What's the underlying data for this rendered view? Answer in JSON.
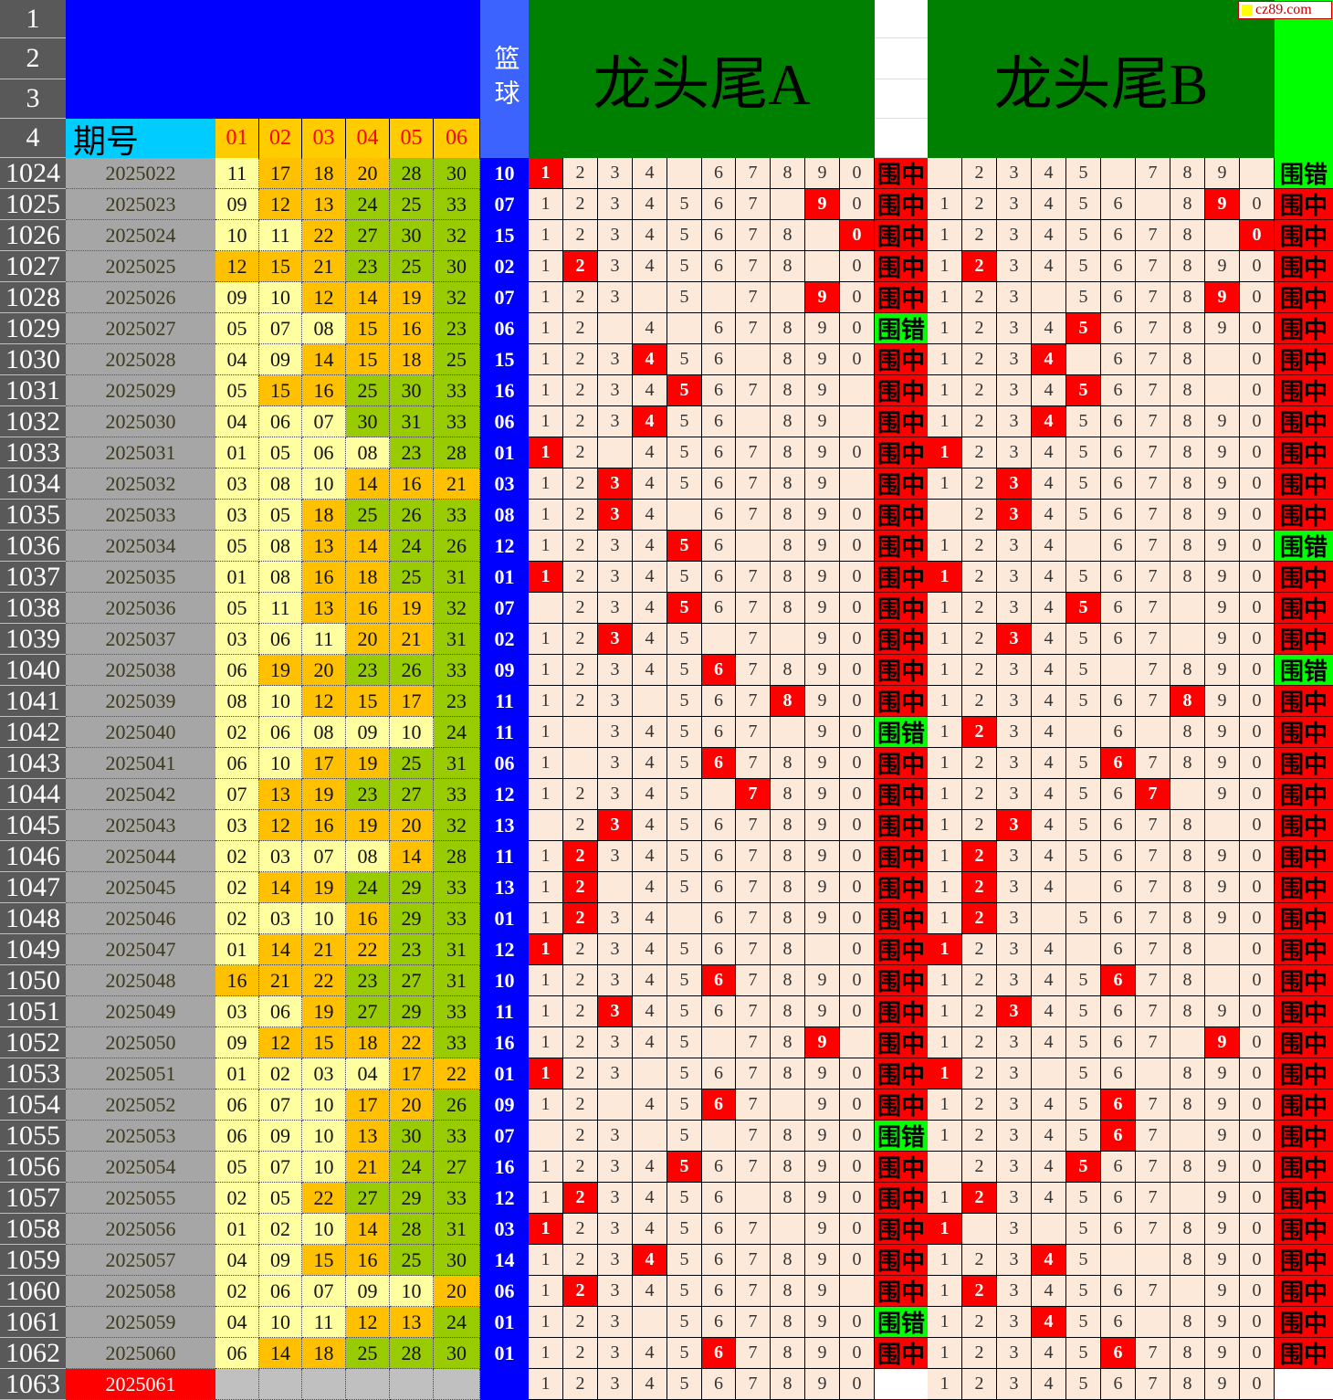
{
  "header": {
    "row_numbers": [
      "1",
      "2",
      "3",
      "4"
    ],
    "issue_label": "期号",
    "red_labels": [
      "01",
      "02",
      "03",
      "04",
      "05",
      "06"
    ],
    "blue_label": "篮球",
    "title_a": "龙头尾A",
    "title_b": "龙头尾B",
    "logo_text": "cz89.com"
  },
  "colors": {
    "red_low": "#ffffa0",
    "red_mid": "#ffc000",
    "red_high": "#99cc00",
    "hit": "#ff0000",
    "result_hit": "#ff0000",
    "result_miss": "#00ff00",
    "panel_green": "#008000",
    "header_blue": "#0000ff",
    "grid_bg": "#fde9d9"
  },
  "rows": [
    {
      "row": "1024",
      "issue": "2025022",
      "reds": [
        "11",
        "17",
        "18",
        "20",
        "28",
        "30"
      ],
      "blue": "10",
      "a": {
        "cells": "1234 67890",
        "hit": "1",
        "result": "围中"
      },
      "b": {
        "cells": " 2345 789 ",
        "hit": "",
        "result": "围错"
      }
    },
    {
      "row": "1025",
      "issue": "2025023",
      "reds": [
        "09",
        "12",
        "13",
        "24",
        "25",
        "33"
      ],
      "blue": "07",
      "a": {
        "cells": "1234567 90",
        "hit": "9",
        "result": "围中"
      },
      "b": {
        "cells": "123456 890",
        "hit": "9",
        "result": "围中"
      }
    },
    {
      "row": "1026",
      "issue": "2025024",
      "reds": [
        "10",
        "11",
        "22",
        "27",
        "30",
        "32"
      ],
      "blue": "15",
      "a": {
        "cells": "12345678 0",
        "hit": "0",
        "result": "围中"
      },
      "b": {
        "cells": "12345678 0",
        "hit": "0",
        "result": "围中"
      }
    },
    {
      "row": "1027",
      "issue": "2025025",
      "reds": [
        "12",
        "15",
        "21",
        "23",
        "25",
        "30"
      ],
      "blue": "02",
      "a": {
        "cells": "12345678 0",
        "hit": "2",
        "result": "围中"
      },
      "b": {
        "cells": "1234567890",
        "hit": "2",
        "result": "围中"
      }
    },
    {
      "row": "1028",
      "issue": "2025026",
      "reds": [
        "09",
        "10",
        "12",
        "14",
        "19",
        "32"
      ],
      "blue": "07",
      "a": {
        "cells": "123 5 7 90",
        "hit": "9",
        "result": "围中"
      },
      "b": {
        "cells": "123 567890",
        "hit": "9",
        "result": "围中"
      }
    },
    {
      "row": "1029",
      "issue": "2025027",
      "reds": [
        "05",
        "07",
        "08",
        "15",
        "16",
        "23"
      ],
      "blue": "06",
      "a": {
        "cells": "12 4 67890",
        "hit": "",
        "result": "围错"
      },
      "b": {
        "cells": "1234567890",
        "hit": "5",
        "result": "围中"
      }
    },
    {
      "row": "1030",
      "issue": "2025028",
      "reds": [
        "04",
        "09",
        "14",
        "15",
        "18",
        "25"
      ],
      "blue": "15",
      "a": {
        "cells": "123456 890",
        "hit": "4",
        "result": "围中"
      },
      "b": {
        "cells": "1234 678 0",
        "hit": "4",
        "result": "围中"
      }
    },
    {
      "row": "1031",
      "issue": "2025029",
      "reds": [
        "05",
        "15",
        "16",
        "25",
        "30",
        "33"
      ],
      "blue": "16",
      "a": {
        "cells": "123456789 ",
        "hit": "5",
        "result": "围中"
      },
      "b": {
        "cells": "12345678 0",
        "hit": "5",
        "result": "围中"
      }
    },
    {
      "row": "1032",
      "issue": "2025030",
      "reds": [
        "04",
        "06",
        "07",
        "30",
        "31",
        "33"
      ],
      "blue": "06",
      "a": {
        "cells": "123456 89 ",
        "hit": "4",
        "result": "围中"
      },
      "b": {
        "cells": "1234567890",
        "hit": "4",
        "result": "围中"
      }
    },
    {
      "row": "1033",
      "issue": "2025031",
      "reds": [
        "01",
        "05",
        "06",
        "08",
        "23",
        "28"
      ],
      "blue": "01",
      "a": {
        "cells": "12 4567890",
        "hit": "1",
        "result": "围中"
      },
      "b": {
        "cells": "1234567890",
        "hit": "1",
        "result": "围中"
      }
    },
    {
      "row": "1034",
      "issue": "2025032",
      "reds": [
        "03",
        "08",
        "10",
        "14",
        "16",
        "21"
      ],
      "blue": "03",
      "a": {
        "cells": "123456789 ",
        "hit": "3",
        "result": "围中"
      },
      "b": {
        "cells": "1234567890",
        "hit": "3",
        "result": "围中"
      }
    },
    {
      "row": "1035",
      "issue": "2025033",
      "reds": [
        "03",
        "05",
        "18",
        "25",
        "26",
        "33"
      ],
      "blue": "08",
      "a": {
        "cells": "1234 67890",
        "hit": "3",
        "result": "围中"
      },
      "b": {
        "cells": " 234567890",
        "hit": "3",
        "result": "围中"
      }
    },
    {
      "row": "1036",
      "issue": "2025034",
      "reds": [
        "05",
        "08",
        "13",
        "14",
        "24",
        "26"
      ],
      "blue": "12",
      "a": {
        "cells": "123456 890",
        "hit": "5",
        "result": "围中"
      },
      "b": {
        "cells": "1234 67890",
        "hit": "",
        "result": "围错"
      }
    },
    {
      "row": "1037",
      "issue": "2025035",
      "reds": [
        "01",
        "08",
        "16",
        "18",
        "25",
        "31"
      ],
      "blue": "01",
      "a": {
        "cells": "1234567890",
        "hit": "1",
        "result": "围中"
      },
      "b": {
        "cells": "1234567890",
        "hit": "1",
        "result": "围中"
      }
    },
    {
      "row": "1038",
      "issue": "2025036",
      "reds": [
        "05",
        "11",
        "13",
        "16",
        "19",
        "32"
      ],
      "blue": "07",
      "a": {
        "cells": " 234567890",
        "hit": "5",
        "result": "围中"
      },
      "b": {
        "cells": "1234567 90",
        "hit": "5",
        "result": "围中"
      }
    },
    {
      "row": "1039",
      "issue": "2025037",
      "reds": [
        "03",
        "06",
        "11",
        "20",
        "21",
        "31"
      ],
      "blue": "02",
      "a": {
        "cells": "12345 7 90",
        "hit": "3",
        "result": "围中"
      },
      "b": {
        "cells": "1234567 90",
        "hit": "3",
        "result": "围中"
      }
    },
    {
      "row": "1040",
      "issue": "2025038",
      "reds": [
        "06",
        "19",
        "20",
        "23",
        "26",
        "33"
      ],
      "blue": "09",
      "a": {
        "cells": "1234567890",
        "hit": "6",
        "result": "围中"
      },
      "b": {
        "cells": "12345 7890",
        "hit": "",
        "result": "围错"
      }
    },
    {
      "row": "1041",
      "issue": "2025039",
      "reds": [
        "08",
        "10",
        "12",
        "15",
        "17",
        "23"
      ],
      "blue": "11",
      "a": {
        "cells": "123 567890",
        "hit": "8",
        "result": "围中"
      },
      "b": {
        "cells": "1234567890",
        "hit": "8",
        "result": "围中"
      }
    },
    {
      "row": "1042",
      "issue": "2025040",
      "reds": [
        "02",
        "06",
        "08",
        "09",
        "10",
        "24"
      ],
      "blue": "11",
      "a": {
        "cells": "1 34567 90",
        "hit": "",
        "result": "围错"
      },
      "b": {
        "cells": "1234 6 890",
        "hit": "2",
        "result": "围中"
      }
    },
    {
      "row": "1043",
      "issue": "2025041",
      "reds": [
        "06",
        "10",
        "17",
        "19",
        "25",
        "31"
      ],
      "blue": "06",
      "a": {
        "cells": "1 34567890",
        "hit": "6",
        "result": "围中"
      },
      "b": {
        "cells": "1234567890",
        "hit": "6",
        "result": "围中"
      }
    },
    {
      "row": "1044",
      "issue": "2025042",
      "reds": [
        "07",
        "13",
        "19",
        "23",
        "27",
        "33"
      ],
      "blue": "12",
      "a": {
        "cells": "12345 7890",
        "hit": "7",
        "result": "围中"
      },
      "b": {
        "cells": "1234567 90",
        "hit": "7",
        "result": "围中"
      }
    },
    {
      "row": "1045",
      "issue": "2025043",
      "reds": [
        "03",
        "12",
        "16",
        "19",
        "20",
        "32"
      ],
      "blue": "13",
      "a": {
        "cells": " 234567890",
        "hit": "3",
        "result": "围中"
      },
      "b": {
        "cells": "12345678 0",
        "hit": "3",
        "result": "围中"
      }
    },
    {
      "row": "1046",
      "issue": "2025044",
      "reds": [
        "02",
        "03",
        "07",
        "08",
        "14",
        "28"
      ],
      "blue": "11",
      "a": {
        "cells": "1234567890",
        "hit": "2",
        "result": "围中"
      },
      "b": {
        "cells": "1234567890",
        "hit": "2",
        "result": "围中"
      }
    },
    {
      "row": "1047",
      "issue": "2025045",
      "reds": [
        "02",
        "14",
        "19",
        "24",
        "29",
        "33"
      ],
      "blue": "13",
      "a": {
        "cells": "12 4567890",
        "hit": "2",
        "result": "围中"
      },
      "b": {
        "cells": "1234 67890",
        "hit": "2",
        "result": "围中"
      }
    },
    {
      "row": "1048",
      "issue": "2025046",
      "reds": [
        "02",
        "03",
        "10",
        "16",
        "29",
        "33"
      ],
      "blue": "01",
      "a": {
        "cells": "1234 67890",
        "hit": "2",
        "result": "围中"
      },
      "b": {
        "cells": "123 567890",
        "hit": "2",
        "result": "围中"
      }
    },
    {
      "row": "1049",
      "issue": "2025047",
      "reds": [
        "01",
        "14",
        "21",
        "22",
        "23",
        "31"
      ],
      "blue": "12",
      "a": {
        "cells": "12345678 0",
        "hit": "1",
        "result": "围中"
      },
      "b": {
        "cells": "1234 678 0",
        "hit": "1",
        "result": "围中"
      }
    },
    {
      "row": "1050",
      "issue": "2025048",
      "reds": [
        "16",
        "21",
        "22",
        "23",
        "27",
        "31"
      ],
      "blue": "10",
      "a": {
        "cells": "1234567890",
        "hit": "6",
        "result": "围中"
      },
      "b": {
        "cells": "12345678 0",
        "hit": "6",
        "result": "围中"
      }
    },
    {
      "row": "1051",
      "issue": "2025049",
      "reds": [
        "03",
        "06",
        "19",
        "27",
        "29",
        "33"
      ],
      "blue": "11",
      "a": {
        "cells": "1234567890",
        "hit": "3",
        "result": "围中"
      },
      "b": {
        "cells": "1234567890",
        "hit": "3",
        "result": "围中"
      }
    },
    {
      "row": "1052",
      "issue": "2025050",
      "reds": [
        "09",
        "12",
        "15",
        "18",
        "22",
        "33"
      ],
      "blue": "16",
      "a": {
        "cells": "12345 789 ",
        "hit": "9",
        "result": "围中"
      },
      "b": {
        "cells": "1234567 90",
        "hit": "9",
        "result": "围中"
      }
    },
    {
      "row": "1053",
      "issue": "2025051",
      "reds": [
        "01",
        "02",
        "03",
        "04",
        "17",
        "22"
      ],
      "blue": "01",
      "a": {
        "cells": "123 567890",
        "hit": "1",
        "result": "围中"
      },
      "b": {
        "cells": "123 56 890",
        "hit": "1",
        "result": "围中"
      }
    },
    {
      "row": "1054",
      "issue": "2025052",
      "reds": [
        "06",
        "07",
        "10",
        "17",
        "20",
        "26"
      ],
      "blue": "09",
      "a": {
        "cells": "12 4567 90",
        "hit": "6",
        "result": "围中"
      },
      "b": {
        "cells": "1234567890",
        "hit": "6",
        "result": "围中"
      }
    },
    {
      "row": "1055",
      "issue": "2025053",
      "reds": [
        "06",
        "09",
        "10",
        "13",
        "30",
        "33"
      ],
      "blue": "07",
      "a": {
        "cells": " 23 5 7890",
        "hit": "",
        "result": "围错"
      },
      "b": {
        "cells": "1234567 90",
        "hit": "6",
        "result": "围中"
      }
    },
    {
      "row": "1056",
      "issue": "2025054",
      "reds": [
        "05",
        "07",
        "10",
        "21",
        "24",
        "27"
      ],
      "blue": "16",
      "a": {
        "cells": "1234567890",
        "hit": "5",
        "result": "围中"
      },
      "b": {
        "cells": " 234567890",
        "hit": "5",
        "result": "围中"
      }
    },
    {
      "row": "1057",
      "issue": "2025055",
      "reds": [
        "02",
        "05",
        "22",
        "27",
        "29",
        "33"
      ],
      "blue": "12",
      "a": {
        "cells": "123456 890",
        "hit": "2",
        "result": "围中"
      },
      "b": {
        "cells": "1234567 90",
        "hit": "2",
        "result": "围中"
      }
    },
    {
      "row": "1058",
      "issue": "2025056",
      "reds": [
        "01",
        "02",
        "10",
        "14",
        "28",
        "31"
      ],
      "blue": "03",
      "a": {
        "cells": "1234567 90",
        "hit": "1",
        "result": "围中"
      },
      "b": {
        "cells": "1 3 567890",
        "hit": "1",
        "result": "围中"
      }
    },
    {
      "row": "1059",
      "issue": "2025057",
      "reds": [
        "04",
        "09",
        "15",
        "16",
        "25",
        "30"
      ],
      "blue": "14",
      "a": {
        "cells": "1234567890",
        "hit": "4",
        "result": "围中"
      },
      "b": {
        "cells": "12345  890",
        "hit": "4",
        "result": "围中"
      }
    },
    {
      "row": "1060",
      "issue": "2025058",
      "reds": [
        "02",
        "06",
        "07",
        "09",
        "10",
        "20"
      ],
      "blue": "06",
      "a": {
        "cells": "123456789 ",
        "hit": "2",
        "result": "围中"
      },
      "b": {
        "cells": "1234567 90",
        "hit": "2",
        "result": "围中"
      }
    },
    {
      "row": "1061",
      "issue": "2025059",
      "reds": [
        "04",
        "10",
        "11",
        "12",
        "13",
        "24"
      ],
      "blue": "01",
      "a": {
        "cells": "123 567890",
        "hit": "",
        "result": "围错"
      },
      "b": {
        "cells": "123456 890",
        "hit": "4",
        "result": "围中"
      }
    },
    {
      "row": "1062",
      "issue": "2025060",
      "reds": [
        "06",
        "14",
        "18",
        "25",
        "28",
        "30"
      ],
      "blue": "01",
      "a": {
        "cells": "1234567890",
        "hit": "6",
        "result": "围中"
      },
      "b": {
        "cells": "1234567890",
        "hit": "6",
        "result": "围中"
      }
    },
    {
      "row": "1063",
      "issue": "2025061",
      "reds": [],
      "blue": "",
      "a": {
        "cells": "1234567890",
        "hit": "",
        "result": ""
      },
      "b": {
        "cells": "1234567890",
        "hit": "",
        "result": ""
      }
    }
  ]
}
